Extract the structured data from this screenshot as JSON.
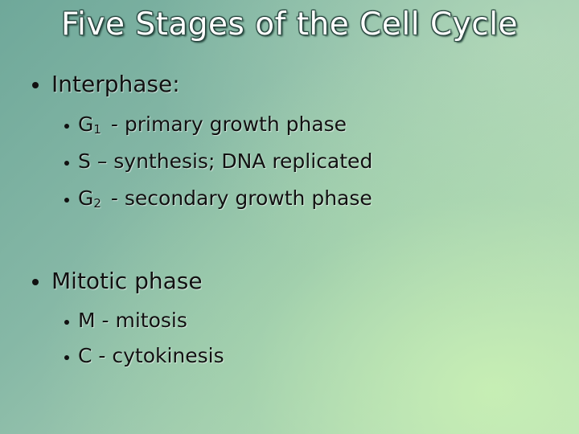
{
  "title": "Five Stages of the Cell Cycle",
  "sections": [
    {
      "heading": "Interphase:",
      "items": [
        {
          "letter": "G",
          "subscript": "1",
          "text": "- primary growth phase"
        },
        {
          "text": "S – synthesis; DNA replicated"
        },
        {
          "letter": "G",
          "subscript": "2",
          "text": "- secondary growth phase"
        }
      ]
    },
    {
      "heading": "Mitotic phase",
      "items": [
        {
          "text": "M - mitosis"
        },
        {
          "text": "C - cytokinesis"
        }
      ]
    }
  ]
}
